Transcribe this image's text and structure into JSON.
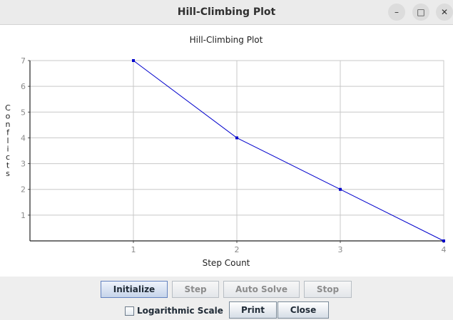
{
  "window": {
    "title": "Hill-Climbing Plot",
    "controls": {
      "minimize_icon": "minimize-icon",
      "maximize_icon": "maximize-icon",
      "close_icon": "close-icon",
      "minimize_glyph": "–",
      "maximize_glyph": "□",
      "close_glyph": "✕"
    }
  },
  "chart_data": {
    "type": "line",
    "title": "Hill-Climbing Plot",
    "xlabel": "Step Count",
    "ylabel": "Conflicts",
    "x": [
      1,
      2,
      3,
      4
    ],
    "series": [
      {
        "values": [
          7,
          4,
          2,
          0
        ],
        "color": "#0000cc"
      }
    ],
    "xticks": [
      "1",
      "2",
      "3",
      "4"
    ],
    "yticks": [
      "1",
      "2",
      "3",
      "4",
      "5",
      "6",
      "7"
    ],
    "xlim": [
      0,
      4
    ],
    "ylim": [
      0,
      7
    ],
    "grid": true,
    "legend": "none"
  },
  "buttons": {
    "initialize": "Initialize",
    "step": "Step",
    "auto_solve": "Auto Solve",
    "stop": "Stop",
    "print": "Print",
    "close": "Close"
  },
  "options": {
    "logarithmic_scale_label": "Logarithmic Scale",
    "logarithmic_scale_checked": false
  }
}
